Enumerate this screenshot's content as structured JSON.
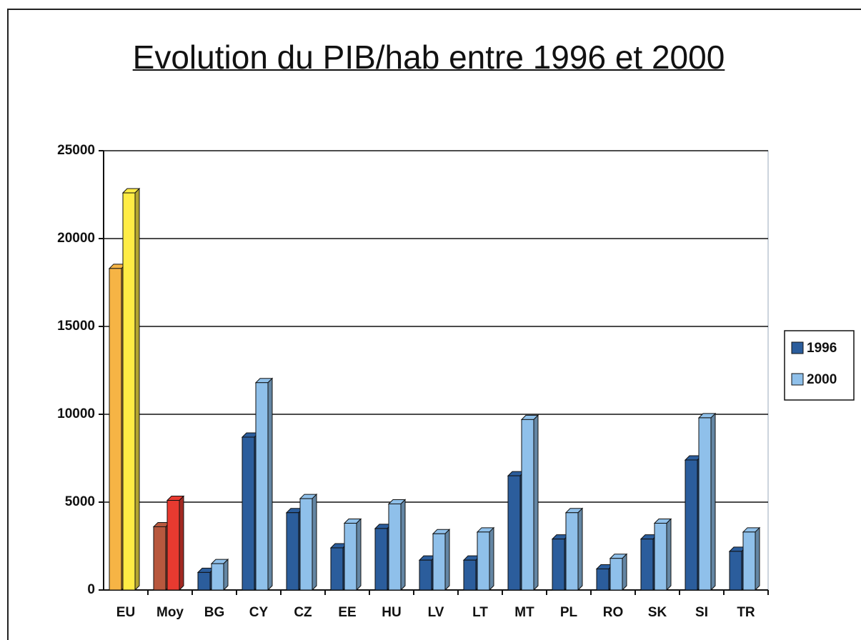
{
  "chart_data": {
    "type": "bar3d",
    "title": "Evolution du PIB/hab entre 1996 et 2000",
    "categories": [
      "EU",
      "Moy",
      "BG",
      "CY",
      "CZ",
      "EE",
      "HU",
      "LV",
      "LT",
      "MT",
      "PL",
      "RO",
      "SK",
      "SI",
      "TR"
    ],
    "series": [
      {
        "name": "1996",
        "color": "#2b5d9c",
        "colors": [
          "#f6b445",
          "#b8583e",
          "#2b5d9c",
          "#2b5d9c",
          "#2b5d9c",
          "#2b5d9c",
          "#2b5d9c",
          "#2b5d9c",
          "#2b5d9c",
          "#2b5d9c",
          "#2b5d9c",
          "#2b5d9c",
          "#2b5d9c",
          "#2b5d9c",
          "#2b5d9c"
        ],
        "values": [
          18300,
          3600,
          1000,
          8700,
          4400,
          2400,
          3500,
          1700,
          1700,
          6500,
          2900,
          1200,
          2900,
          7400,
          2200
        ]
      },
      {
        "name": "2000",
        "color": "#8fc0ea",
        "colors": [
          "#ffec45",
          "#e83a30",
          "#8fc0ea",
          "#8fc0ea",
          "#8fc0ea",
          "#8fc0ea",
          "#8fc0ea",
          "#8fc0ea",
          "#8fc0ea",
          "#8fc0ea",
          "#8fc0ea",
          "#8fc0ea",
          "#8fc0ea",
          "#8fc0ea",
          "#8fc0ea"
        ],
        "values": [
          22600,
          5100,
          1500,
          11800,
          5200,
          3800,
          4900,
          3200,
          3300,
          9700,
          4400,
          1800,
          3800,
          9800,
          3300
        ]
      }
    ],
    "ylim": [
      0,
      25000
    ],
    "yticks": [
      0,
      5000,
      10000,
      15000,
      20000,
      25000
    ],
    "grid": true,
    "legend": "right"
  }
}
